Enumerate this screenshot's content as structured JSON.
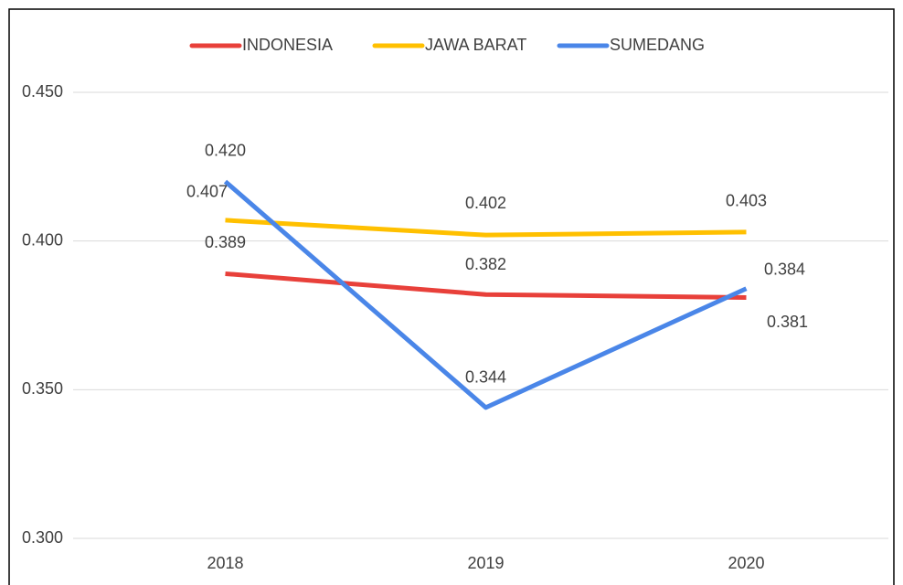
{
  "chart_data": {
    "type": "line",
    "categories": [
      "2018",
      "2019",
      "2020"
    ],
    "series": [
      {
        "name": "INDONESIA",
        "color": "#e8403a",
        "values": [
          0.389,
          0.382,
          0.381
        ],
        "value_labels": [
          "0.389",
          "0.382",
          "0.381"
        ]
      },
      {
        "name": "JAWA BARAT",
        "color": "#ffc000",
        "values": [
          0.407,
          0.402,
          0.403
        ],
        "value_labels": [
          "0.407",
          "0.402",
          "0.403"
        ]
      },
      {
        "name": "SUMEDANG",
        "color": "#4a86e8",
        "values": [
          0.42,
          0.344,
          0.384
        ],
        "value_labels": [
          "0.420",
          "0.344",
          "0.384"
        ]
      }
    ],
    "ylim": [
      0.3,
      0.45
    ],
    "yticks": [
      {
        "value": 0.3,
        "label": "0.300"
      },
      {
        "value": 0.35,
        "label": "0.350"
      },
      {
        "value": 0.4,
        "label": "0.400"
      },
      {
        "value": 0.45,
        "label": "0.450"
      }
    ],
    "grid": true,
    "legend": "top"
  }
}
